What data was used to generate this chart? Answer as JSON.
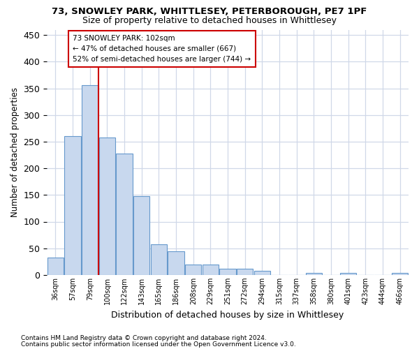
{
  "title1": "73, SNOWLEY PARK, WHITTLESEY, PETERBOROUGH, PE7 1PF",
  "title2": "Size of property relative to detached houses in Whittlesey",
  "xlabel": "Distribution of detached houses by size in Whittlesey",
  "ylabel": "Number of detached properties",
  "bar_labels": [
    "36sqm",
    "57sqm",
    "79sqm",
    "100sqm",
    "122sqm",
    "143sqm",
    "165sqm",
    "186sqm",
    "208sqm",
    "229sqm",
    "251sqm",
    "272sqm",
    "294sqm",
    "315sqm",
    "337sqm",
    "358sqm",
    "380sqm",
    "401sqm",
    "423sqm",
    "444sqm",
    "466sqm"
  ],
  "bar_values": [
    33,
    260,
    356,
    258,
    227,
    148,
    57,
    44,
    20,
    19,
    11,
    12,
    8,
    0,
    0,
    4,
    0,
    4,
    0,
    0,
    4
  ],
  "bar_color": "#c8d8ee",
  "bar_edgecolor": "#6699cc",
  "annotation_line1": "73 SNOWLEY PARK: 102sqm",
  "annotation_line2": "← 47% of detached houses are smaller (667)",
  "annotation_line3": "52% of semi-detached houses are larger (744) →",
  "vline_color": "#cc0000",
  "footnote1": "Contains HM Land Registry data © Crown copyright and database right 2024.",
  "footnote2": "Contains public sector information licensed under the Open Government Licence v3.0.",
  "ylim_max": 460,
  "background_color": "#ffffff",
  "grid_color": "#d0d8e8"
}
